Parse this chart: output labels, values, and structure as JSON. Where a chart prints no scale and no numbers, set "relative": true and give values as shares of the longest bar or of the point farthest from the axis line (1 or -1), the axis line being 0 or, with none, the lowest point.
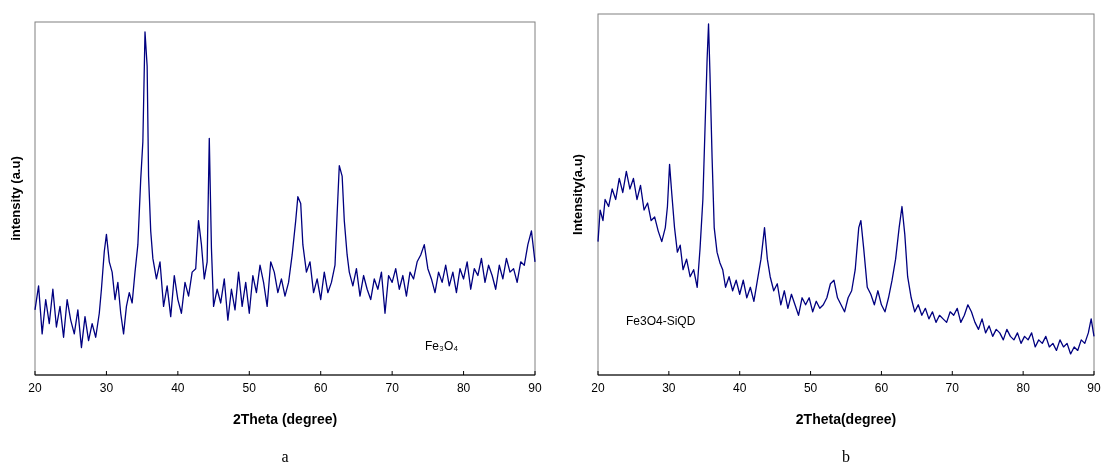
{
  "chart_data": [
    {
      "type": "line",
      "xlabel": "2Theta (degree)",
      "ylabel": "intensity (a.u)",
      "relative": true,
      "xlim": [
        20,
        90
      ],
      "xticks": [
        20,
        30,
        40,
        50,
        60,
        70,
        80,
        90
      ],
      "annotations": [
        "Fe₃O₄",
        "a"
      ],
      "x": [
        20,
        20.5,
        21,
        21.5,
        22,
        22.5,
        23,
        23.5,
        24,
        24.5,
        25,
        25.5,
        26,
        26.5,
        27,
        27.5,
        28,
        28.5,
        29,
        29.3,
        29.7,
        30,
        30.4,
        30.8,
        31.2,
        31.6,
        32,
        32.4,
        32.8,
        33.2,
        33.6,
        34,
        34.4,
        34.8,
        35.1,
        35.4,
        35.7,
        35.9,
        36.2,
        36.5,
        37,
        37.5,
        38,
        38.5,
        39,
        39.5,
        40,
        40.5,
        41,
        41.5,
        42,
        42.5,
        42.9,
        43.3,
        43.7,
        44.1,
        44.4,
        44.7,
        45,
        45.5,
        46,
        46.5,
        47,
        47.5,
        48,
        48.5,
        49,
        49.5,
        50,
        50.5,
        51,
        51.5,
        52,
        52.5,
        53,
        53.5,
        54,
        54.5,
        55,
        55.5,
        56,
        56.5,
        56.8,
        57.2,
        57.5,
        58,
        58.5,
        59,
        59.5,
        60,
        60.5,
        61,
        61.5,
        62,
        62.3,
        62.6,
        63,
        63.3,
        63.7,
        64,
        64.5,
        65,
        65.5,
        66,
        66.5,
        67,
        67.5,
        68,
        68.5,
        69,
        69.5,
        70,
        70.5,
        71,
        71.5,
        72,
        72.5,
        73,
        73.5,
        74,
        74.5,
        75,
        75.5,
        76,
        76.5,
        77,
        77.5,
        78,
        78.5,
        79,
        79.5,
        80,
        80.5,
        81,
        81.5,
        82,
        82.5,
        83,
        83.5,
        84,
        84.5,
        85,
        85.5,
        86,
        86.5,
        87,
        87.5,
        88,
        88.5,
        89,
        89.5,
        90
      ],
      "series": [
        {
          "color": "#000080",
          "values": [
            0.19,
            0.26,
            0.12,
            0.22,
            0.15,
            0.25,
            0.14,
            0.2,
            0.11,
            0.22,
            0.16,
            0.12,
            0.19,
            0.08,
            0.17,
            0.1,
            0.15,
            0.11,
            0.18,
            0.25,
            0.36,
            0.41,
            0.33,
            0.3,
            0.22,
            0.27,
            0.18,
            0.12,
            0.2,
            0.24,
            0.21,
            0.3,
            0.38,
            0.57,
            0.68,
            1.0,
            0.9,
            0.58,
            0.42,
            0.34,
            0.28,
            0.33,
            0.2,
            0.26,
            0.17,
            0.29,
            0.22,
            0.18,
            0.27,
            0.23,
            0.3,
            0.31,
            0.45,
            0.38,
            0.28,
            0.33,
            0.69,
            0.37,
            0.2,
            0.25,
            0.21,
            0.28,
            0.16,
            0.25,
            0.19,
            0.3,
            0.2,
            0.27,
            0.18,
            0.29,
            0.24,
            0.32,
            0.27,
            0.2,
            0.33,
            0.3,
            0.24,
            0.28,
            0.23,
            0.27,
            0.35,
            0.45,
            0.52,
            0.5,
            0.38,
            0.3,
            0.33,
            0.24,
            0.28,
            0.22,
            0.3,
            0.24,
            0.27,
            0.32,
            0.47,
            0.61,
            0.58,
            0.45,
            0.35,
            0.3,
            0.26,
            0.31,
            0.23,
            0.29,
            0.25,
            0.22,
            0.28,
            0.25,
            0.3,
            0.18,
            0.29,
            0.27,
            0.31,
            0.25,
            0.29,
            0.23,
            0.3,
            0.28,
            0.33,
            0.35,
            0.38,
            0.31,
            0.28,
            0.24,
            0.3,
            0.27,
            0.32,
            0.26,
            0.3,
            0.24,
            0.31,
            0.28,
            0.33,
            0.25,
            0.31,
            0.29,
            0.34,
            0.27,
            0.32,
            0.29,
            0.25,
            0.32,
            0.28,
            0.34,
            0.3,
            0.31,
            0.27,
            0.33,
            0.32,
            0.38,
            0.42,
            0.33
          ]
        }
      ]
    },
    {
      "type": "line",
      "xlabel": "2Theta(degree)",
      "ylabel": "Intensity(a.u)",
      "relative": true,
      "xlim": [
        20,
        90
      ],
      "xticks": [
        20,
        30,
        40,
        50,
        60,
        70,
        80,
        90
      ],
      "annotations": [
        "Fe3O4-SiQD",
        "b"
      ],
      "x": [
        20,
        20.3,
        20.7,
        21,
        21.5,
        22,
        22.5,
        23,
        23.5,
        24,
        24.5,
        25,
        25.5,
        26,
        26.5,
        27,
        27.5,
        28,
        28.5,
        29,
        29.5,
        29.8,
        30.1,
        30.4,
        30.8,
        31.2,
        31.6,
        32,
        32.5,
        33,
        33.5,
        34,
        34.4,
        34.8,
        35.1,
        35.4,
        35.6,
        35.8,
        36.1,
        36.4,
        36.8,
        37.2,
        37.6,
        38,
        38.5,
        39,
        39.5,
        40,
        40.5,
        41,
        41.5,
        42,
        42.5,
        43,
        43.5,
        43.9,
        44.3,
        44.8,
        45.3,
        45.8,
        46.3,
        46.8,
        47.3,
        47.8,
        48.3,
        48.8,
        49.3,
        49.8,
        50.3,
        50.8,
        51.3,
        51.8,
        52.3,
        52.8,
        53.3,
        53.8,
        54.3,
        54.8,
        55.3,
        55.8,
        56.3,
        56.8,
        57.1,
        57.5,
        58,
        58.5,
        59,
        59.5,
        60,
        60.5,
        61,
        61.5,
        62,
        62.5,
        62.9,
        63.3,
        63.7,
        64.2,
        64.7,
        65.2,
        65.7,
        66.2,
        66.7,
        67.2,
        67.7,
        68.2,
        68.7,
        69.2,
        69.7,
        70.2,
        70.7,
        71.2,
        71.7,
        72.2,
        72.7,
        73.2,
        73.7,
        74.2,
        74.7,
        75.2,
        75.7,
        76.2,
        76.7,
        77.2,
        77.7,
        78.2,
        78.7,
        79.2,
        79.7,
        80.2,
        80.7,
        81.2,
        81.7,
        82.2,
        82.7,
        83.2,
        83.7,
        84.2,
        84.7,
        85.2,
        85.7,
        86.2,
        86.7,
        87.2,
        87.7,
        88.2,
        88.7,
        89.2,
        89.6,
        90
      ],
      "series": [
        {
          "color": "#000080",
          "values": [
            0.38,
            0.47,
            0.44,
            0.5,
            0.48,
            0.53,
            0.5,
            0.56,
            0.52,
            0.58,
            0.53,
            0.56,
            0.5,
            0.54,
            0.47,
            0.49,
            0.44,
            0.45,
            0.41,
            0.38,
            0.42,
            0.48,
            0.6,
            0.52,
            0.42,
            0.35,
            0.37,
            0.3,
            0.33,
            0.28,
            0.3,
            0.25,
            0.36,
            0.5,
            0.7,
            0.9,
            1.0,
            0.86,
            0.62,
            0.42,
            0.35,
            0.32,
            0.3,
            0.25,
            0.28,
            0.24,
            0.27,
            0.23,
            0.27,
            0.22,
            0.25,
            0.21,
            0.27,
            0.33,
            0.42,
            0.33,
            0.28,
            0.24,
            0.26,
            0.2,
            0.24,
            0.19,
            0.23,
            0.2,
            0.17,
            0.22,
            0.2,
            0.22,
            0.18,
            0.21,
            0.19,
            0.2,
            0.22,
            0.26,
            0.27,
            0.22,
            0.2,
            0.18,
            0.22,
            0.24,
            0.3,
            0.42,
            0.44,
            0.36,
            0.25,
            0.23,
            0.2,
            0.24,
            0.2,
            0.18,
            0.22,
            0.27,
            0.33,
            0.42,
            0.48,
            0.4,
            0.28,
            0.22,
            0.18,
            0.2,
            0.17,
            0.19,
            0.16,
            0.18,
            0.15,
            0.17,
            0.16,
            0.15,
            0.18,
            0.17,
            0.19,
            0.15,
            0.17,
            0.2,
            0.18,
            0.15,
            0.13,
            0.16,
            0.12,
            0.14,
            0.11,
            0.13,
            0.12,
            0.1,
            0.13,
            0.11,
            0.1,
            0.12,
            0.09,
            0.11,
            0.1,
            0.12,
            0.08,
            0.1,
            0.09,
            0.11,
            0.08,
            0.09,
            0.07,
            0.1,
            0.08,
            0.09,
            0.06,
            0.08,
            0.07,
            0.1,
            0.09,
            0.12,
            0.16,
            0.11
          ]
        }
      ]
    }
  ]
}
